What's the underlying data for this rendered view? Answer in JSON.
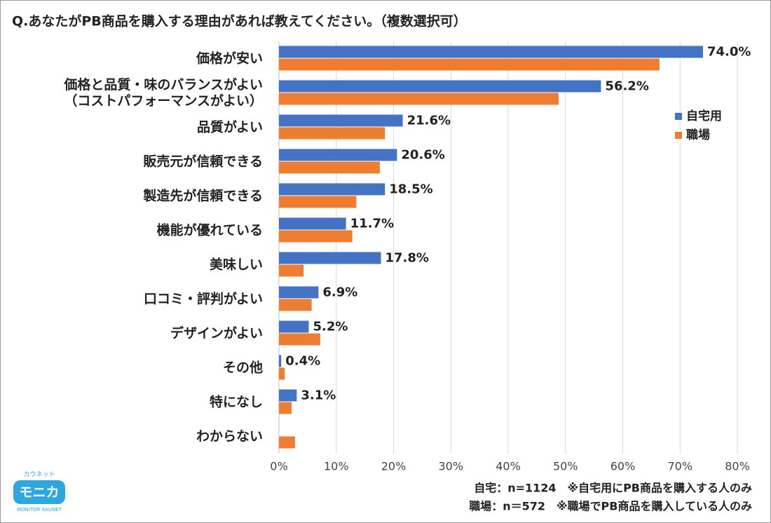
{
  "chart_data": {
    "type": "bar",
    "orientation": "horizontal",
    "title": "Q.あなたがPB商品を購入する理由があれば教えてください。（複数選択可）",
    "categories": [
      "価格が安い",
      "価格と品質・味のバランスがよい\n（コストパフォーマンスがよい）",
      "品質がよい",
      "販売元が信頼できる",
      "製造先が信頼できる",
      "機能が優れている",
      "美味しい",
      "口コミ・評判がよい",
      "デザインがよい",
      "その他",
      "特になし",
      "わからない"
    ],
    "series": [
      {
        "name": "自宅用",
        "color": "#4472c4",
        "values": [
          74.0,
          56.2,
          21.6,
          20.6,
          18.5,
          11.7,
          17.8,
          6.9,
          5.2,
          0.4,
          3.1,
          null
        ],
        "value_labels": [
          "74.0%",
          "56.2%",
          "21.6%",
          "20.6%",
          "18.5%",
          "11.7%",
          "17.8%",
          "6.9%",
          "5.2%",
          "0.4%",
          "3.1%",
          null
        ]
      },
      {
        "name": "職場",
        "color": "#ed7d31",
        "values": [
          66.4,
          48.8,
          18.5,
          17.6,
          13.5,
          12.8,
          4.3,
          5.7,
          7.2,
          1.0,
          2.2,
          2.8
        ]
      }
    ],
    "xlim": [
      0,
      80
    ],
    "xticks": [
      {
        "value": 0,
        "label": "0%"
      },
      {
        "value": 10,
        "label": "10%"
      },
      {
        "value": 20,
        "label": "20%"
      },
      {
        "value": 30,
        "label": "30%"
      },
      {
        "value": 40,
        "label": "40%"
      },
      {
        "value": 50,
        "label": "50%"
      },
      {
        "value": 60,
        "label": "60%"
      },
      {
        "value": 70,
        "label": "70%"
      },
      {
        "value": 80,
        "label": "80%"
      }
    ],
    "grid": true,
    "legend": "right",
    "notes": [
      "自宅：n=1124　※自宅用にPB商品を購入する人のみ",
      "職場：n＝572　※職場でPB商品を購入している人のみ"
    ],
    "logo": {
      "kana": "カウネット",
      "name": "モニカ",
      "sub": "MONITOR KAUNET"
    }
  }
}
